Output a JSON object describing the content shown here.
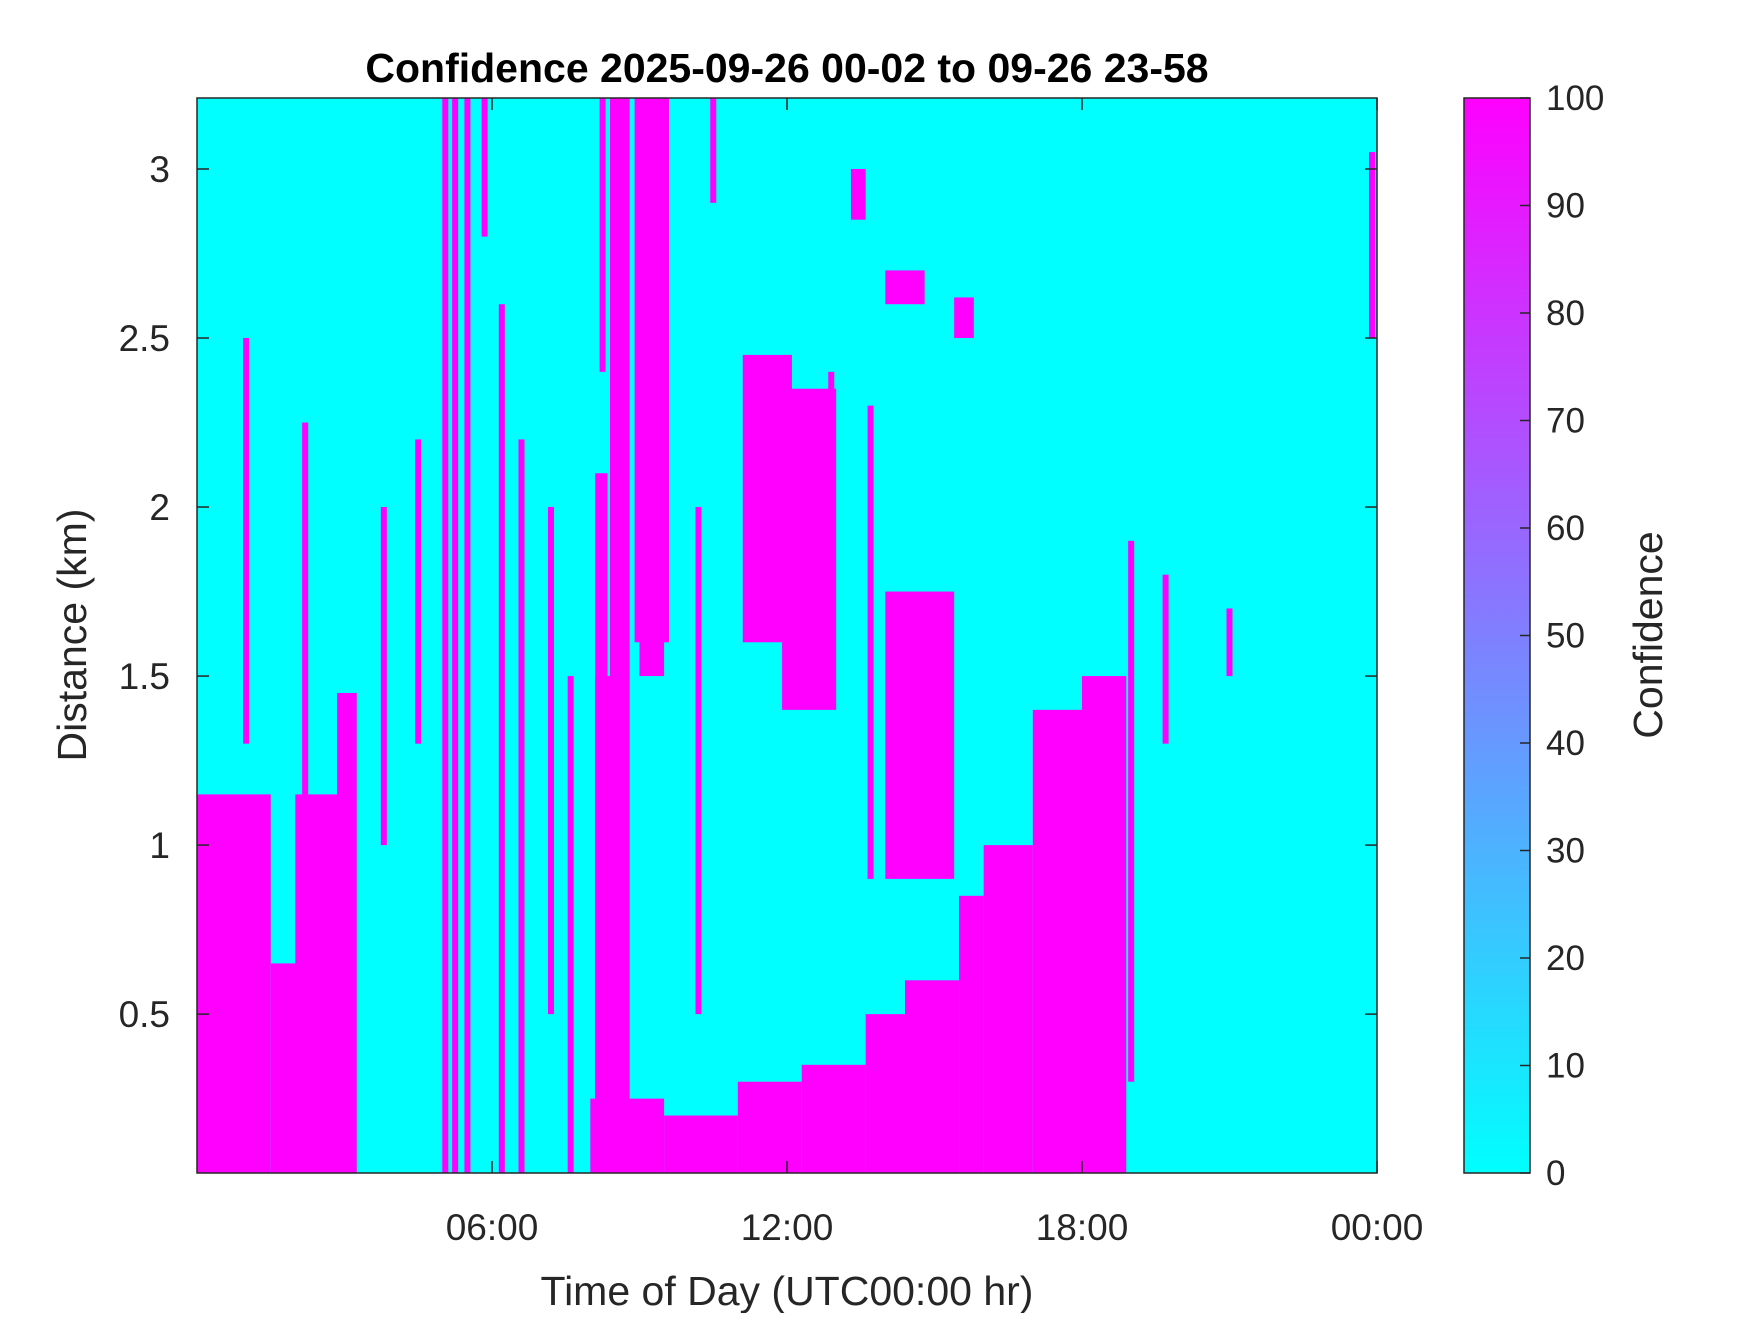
{
  "chart_data": {
    "type": "heatmap",
    "title": "Confidence 2025-09-26 00-02 to 09-26 23-58",
    "xlabel": "Time of Day (UTC00:00 hr)",
    "ylabel": "Distance (km)",
    "x_range_hours": [
      0,
      24
    ],
    "y_range_km": [
      0.03,
      3.21
    ],
    "x_ticks": [
      {
        "value": 6,
        "label": "06:00"
      },
      {
        "value": 12,
        "label": "12:00"
      },
      {
        "value": 18,
        "label": "18:00"
      },
      {
        "value": 24,
        "label": "00:00"
      }
    ],
    "y_ticks": [
      {
        "value": 0.5,
        "label": "0.5"
      },
      {
        "value": 1,
        "label": "1"
      },
      {
        "value": 1.5,
        "label": "1.5"
      },
      {
        "value": 2,
        "label": "2"
      },
      {
        "value": 2.5,
        "label": "2.5"
      },
      {
        "value": 3,
        "label": "3"
      }
    ],
    "colorbar": {
      "label": "Confidence",
      "range": [
        0,
        100
      ],
      "low_color": "#00ffff",
      "high_color": "#ff00ff",
      "ticks": [
        {
          "value": 0,
          "label": "0"
        },
        {
          "value": 10,
          "label": "10"
        },
        {
          "value": 20,
          "label": "20"
        },
        {
          "value": 30,
          "label": "30"
        },
        {
          "value": 40,
          "label": "40"
        },
        {
          "value": 50,
          "label": "50"
        },
        {
          "value": 60,
          "label": "60"
        },
        {
          "value": 70,
          "label": "70"
        },
        {
          "value": 80,
          "label": "80"
        },
        {
          "value": 90,
          "label": "90"
        },
        {
          "value": 100,
          "label": "100"
        }
      ]
    },
    "background_value": 0,
    "high_confidence_regions": [
      {
        "t0": 0.0,
        "t1": 1.5,
        "top_km": 1.15,
        "value": 100
      },
      {
        "t0": 1.5,
        "t1": 2.9,
        "top_km": 0.65,
        "value": 100
      },
      {
        "t0": 2.0,
        "t1": 2.9,
        "top_km": 1.15,
        "value": 100
      },
      {
        "t0": 2.85,
        "t1": 3.25,
        "top_km": 1.45,
        "value": 100
      },
      {
        "t0": 8.0,
        "t1": 9.5,
        "top_km": 0.25,
        "value": 100
      },
      {
        "t0": 8.1,
        "t1": 8.6,
        "top_km": 1.5,
        "value": 100
      },
      {
        "t0": 8.1,
        "t1": 8.35,
        "top_km": 2.1,
        "value": 100
      },
      {
        "t0": 8.4,
        "t1": 8.8,
        "top_km": 3.21,
        "value": 100
      },
      {
        "t0": 8.9,
        "t1": 9.6,
        "top_km": 3.21,
        "bottom_km": 1.6,
        "value": 100
      },
      {
        "t0": 9.0,
        "t1": 9.5,
        "top_km": 2.0,
        "bottom_km": 1.5,
        "value": 100
      },
      {
        "t0": 9.5,
        "t1": 11.0,
        "top_km": 0.2,
        "value": 100
      },
      {
        "t0": 11.0,
        "t1": 12.3,
        "top_km": 0.3,
        "value": 100
      },
      {
        "t0": 12.3,
        "t1": 13.6,
        "top_km": 0.35,
        "value": 100
      },
      {
        "t0": 13.6,
        "t1": 14.4,
        "top_km": 0.5,
        "value": 100
      },
      {
        "t0": 14.4,
        "t1": 15.5,
        "top_km": 0.6,
        "value": 100
      },
      {
        "t0": 14.0,
        "t1": 15.4,
        "top_km": 1.75,
        "bottom_km": 0.9,
        "value": 100
      },
      {
        "t0": 11.1,
        "t1": 12.1,
        "top_km": 2.45,
        "bottom_km": 1.6,
        "value": 100
      },
      {
        "t0": 11.9,
        "t1": 13.0,
        "top_km": 2.35,
        "bottom_km": 1.4,
        "value": 100
      },
      {
        "t0": 15.5,
        "t1": 16.0,
        "top_km": 0.85,
        "value": 100
      },
      {
        "t0": 16.0,
        "t1": 17.0,
        "top_km": 1.0,
        "value": 100
      },
      {
        "t0": 17.0,
        "t1": 18.0,
        "top_km": 1.4,
        "value": 100
      },
      {
        "t0": 18.0,
        "t1": 18.9,
        "top_km": 1.5,
        "value": 100
      },
      {
        "t0": 13.3,
        "t1": 13.6,
        "top_km": 3.0,
        "bottom_km": 2.85,
        "value": 100
      },
      {
        "t0": 14.0,
        "t1": 14.8,
        "top_km": 2.7,
        "bottom_km": 2.6,
        "value": 100
      },
      {
        "t0": 15.4,
        "t1": 15.8,
        "top_km": 2.62,
        "bottom_km": 2.5,
        "value": 100
      }
    ],
    "vertical_streaks": [
      {
        "t": 5.05,
        "bottom_km": 0.03,
        "top_km": 3.21
      },
      {
        "t": 5.25,
        "bottom_km": 0.03,
        "top_km": 3.21
      },
      {
        "t": 5.5,
        "bottom_km": 0.03,
        "top_km": 3.21
      },
      {
        "t": 5.85,
        "bottom_km": 2.8,
        "top_km": 3.21
      },
      {
        "t": 8.25,
        "bottom_km": 2.4,
        "top_km": 3.21
      },
      {
        "t": 10.5,
        "bottom_km": 2.9,
        "top_km": 3.21
      },
      {
        "t": 6.2,
        "bottom_km": 0.03,
        "top_km": 2.6
      },
      {
        "t": 6.6,
        "bottom_km": 0.03,
        "top_km": 2.2
      },
      {
        "t": 10.2,
        "bottom_km": 0.5,
        "top_km": 2.0
      },
      {
        "t": 12.9,
        "bottom_km": 1.5,
        "top_km": 2.4
      },
      {
        "t": 13.7,
        "bottom_km": 0.9,
        "top_km": 2.3
      },
      {
        "t": 19.0,
        "bottom_km": 0.3,
        "top_km": 1.9
      },
      {
        "t": 19.7,
        "bottom_km": 1.3,
        "top_km": 1.8
      },
      {
        "t": 21.0,
        "bottom_km": 1.5,
        "top_km": 1.7
      },
      {
        "t": 23.9,
        "bottom_km": 2.5,
        "top_km": 3.05
      },
      {
        "t": 1.0,
        "bottom_km": 1.3,
        "top_km": 2.5
      },
      {
        "t": 2.2,
        "bottom_km": 0.9,
        "top_km": 2.25
      },
      {
        "t": 3.8,
        "bottom_km": 1.0,
        "top_km": 2.0
      },
      {
        "t": 4.5,
        "bottom_km": 1.3,
        "top_km": 2.2
      },
      {
        "t": 7.2,
        "bottom_km": 0.5,
        "top_km": 2.0
      },
      {
        "t": 7.6,
        "bottom_km": 0.03,
        "top_km": 1.5
      }
    ]
  }
}
